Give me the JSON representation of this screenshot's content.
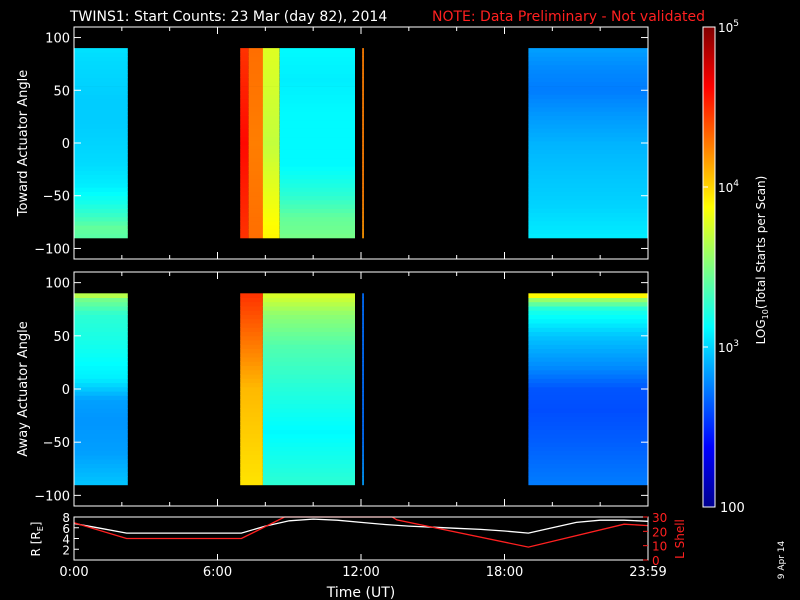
{
  "header": {
    "title": "TWINS1: Start Counts: 23 Mar (day  82), 2014",
    "note": "NOTE: Data Preliminary - Not validated",
    "note_color": "#ff2020"
  },
  "side_stamp": "9 Apr 14",
  "chart_data": [
    {
      "type": "heatmap",
      "name": "toward",
      "ylabel": "Toward Actuator Angle",
      "ylim": [
        -110,
        110
      ],
      "yticks": [
        100,
        50,
        0,
        -50,
        -100
      ],
      "ytick_labels": [
        "100",
        "50",
        "0",
        "−50",
        "−100"
      ],
      "x_unit": "hours UT",
      "xlim": [
        0,
        24
      ],
      "angle_range": [
        -90,
        90
      ],
      "blocks": [
        {
          "t0": 0.0,
          "t1": 2.25,
          "rows": [
            [
              -90,
              2400
            ],
            [
              -80,
              2600
            ],
            [
              -70,
              2000
            ],
            [
              -55,
              1500
            ],
            [
              -40,
              1200
            ],
            [
              -20,
              1050
            ],
            [
              0,
              1000
            ],
            [
              20,
              950
            ],
            [
              40,
              950
            ],
            [
              60,
              1000
            ],
            [
              80,
              1050
            ],
            [
              90,
              1100
            ]
          ]
        },
        {
          "t0": 6.95,
          "t1": 7.3,
          "rows": [
            [
              -90,
              30000
            ],
            [
              0,
              40000
            ],
            [
              90,
              30000
            ]
          ]
        },
        {
          "t0": 7.3,
          "t1": 7.9,
          "rows": [
            [
              -90,
              20000
            ],
            [
              0,
              18000
            ],
            [
              90,
              20000
            ]
          ]
        },
        {
          "t0": 7.9,
          "t1": 8.6,
          "rows": [
            [
              -90,
              8000
            ],
            [
              0,
              5000
            ],
            [
              90,
              6000
            ]
          ]
        },
        {
          "t0": 8.6,
          "t1": 11.75,
          "rows": [
            [
              -90,
              3000
            ],
            [
              -70,
              2600
            ],
            [
              -50,
              1800
            ],
            [
              -20,
              1300
            ],
            [
              0,
              1300
            ],
            [
              30,
              1300
            ],
            [
              60,
              1200
            ],
            [
              90,
              1300
            ]
          ]
        },
        {
          "t0": 12.05,
          "t1": 12.12,
          "rows": [
            [
              -90,
              15000
            ],
            [
              -45,
              18000
            ]
          ]
        },
        {
          "t0": 19.0,
          "t1": 24.0,
          "rows": [
            [
              -90,
              1200
            ],
            [
              -60,
              1000
            ],
            [
              -30,
              900
            ],
            [
              0,
              800
            ],
            [
              30,
              650
            ],
            [
              50,
              550
            ],
            [
              70,
              600
            ],
            [
              90,
              700
            ]
          ]
        }
      ]
    },
    {
      "type": "heatmap",
      "name": "away",
      "ylabel": "Away Actuator Angle",
      "ylim": [
        -110,
        110
      ],
      "yticks": [
        100,
        50,
        0,
        -50,
        -100
      ],
      "ytick_labels": [
        "100",
        "50",
        "0",
        "−50",
        "−100"
      ],
      "x_unit": "hours UT",
      "xlim": [
        0,
        24
      ],
      "angle_range": [
        -90,
        90
      ],
      "blocks": [
        {
          "t0": 0.0,
          "t1": 2.25,
          "rows": [
            [
              -90,
              900
            ],
            [
              -60,
              700
            ],
            [
              -30,
              650
            ],
            [
              -10,
              700
            ],
            [
              10,
              1200
            ],
            [
              40,
              1500
            ],
            [
              70,
              1800
            ],
            [
              85,
              3000
            ],
            [
              90,
              6000
            ]
          ]
        },
        {
          "t0": 6.95,
          "t1": 7.9,
          "rows": [
            [
              -90,
              9000
            ],
            [
              0,
              12000
            ],
            [
              90,
              30000
            ]
          ]
        },
        {
          "t0": 7.9,
          "t1": 11.75,
          "rows": [
            [
              -90,
              1800
            ],
            [
              -40,
              1300
            ],
            [
              0,
              1700
            ],
            [
              40,
              2300
            ],
            [
              70,
              3500
            ],
            [
              90,
              6000
            ]
          ]
        },
        {
          "t0": 12.05,
          "t1": 12.12,
          "rows": [
            [
              -90,
              700
            ],
            [
              -45,
              500
            ]
          ]
        },
        {
          "t0": 19.0,
          "t1": 24.0,
          "rows": [
            [
              -90,
              550
            ],
            [
              -50,
              450
            ],
            [
              -20,
              400
            ],
            [
              0,
              420
            ],
            [
              20,
              600
            ],
            [
              50,
              900
            ],
            [
              75,
              1600
            ],
            [
              85,
              4000
            ],
            [
              90,
              12000
            ]
          ]
        }
      ]
    },
    {
      "type": "line",
      "name": "orbit",
      "ylabel_left": "R [R",
      "ylabel_left_sub": "E",
      "ylabel_left_end": "]",
      "ylabel_right": "L Shell",
      "xlabel": "Time (UT)",
      "xlim": [
        0,
        24
      ],
      "xticks": [
        0,
        6,
        12,
        18,
        24
      ],
      "xtick_labels": [
        "0:00",
        "6:00",
        "12:00",
        "18:00",
        "23:59"
      ],
      "ylim_left": [
        0,
        8
      ],
      "yticks_left": [
        "8",
        "6",
        "4",
        "2"
      ],
      "ylim_right": [
        0,
        30
      ],
      "yticks_right": [
        "30",
        "20",
        "10",
        "0"
      ],
      "series": [
        {
          "color": "#ffffff",
          "x": [
            0,
            1,
            2.2,
            7.0,
            8,
            9,
            10,
            11,
            12,
            13,
            14,
            15,
            16,
            17,
            18,
            19,
            20,
            21,
            22,
            23,
            24
          ],
          "y": [
            6.8,
            6.0,
            5.0,
            5.0,
            6.3,
            7.3,
            7.6,
            7.4,
            7.0,
            6.6,
            6.3,
            6.1,
            5.9,
            5.7,
            5.4,
            5.0,
            6.0,
            7.0,
            7.4,
            7.4,
            7.2
          ]
        },
        {
          "color": "#ff2020",
          "x": [
            0,
            2.2,
            7.0,
            8.8,
            9.0,
            13.3,
            13.5,
            19.0,
            23.0,
            24.0
          ],
          "y": [
            26,
            15,
            15,
            30,
            30,
            30,
            28,
            9,
            25,
            24
          ],
          "axis": "right"
        }
      ]
    }
  ],
  "colorbar": {
    "label": "LOG",
    "label_sub": "10",
    "label_end": "(Total Starts per Scan)",
    "scale": "log",
    "range": [
      100,
      100000
    ],
    "tick_base": "10",
    "tick_exps": [
      "5",
      "4",
      "3"
    ],
    "bottom_label": "100"
  }
}
